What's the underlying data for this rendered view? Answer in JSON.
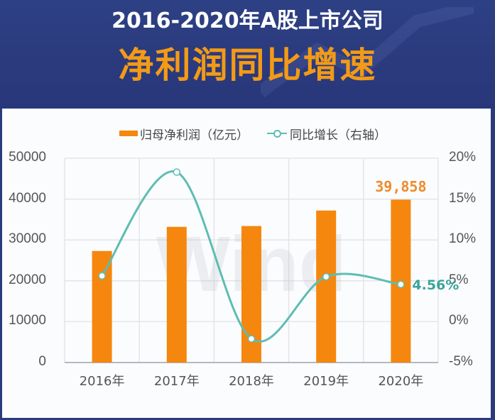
{
  "header": {
    "title_line1": "2016-2020年A股上市公司",
    "title_line2": "净利润同比增速"
  },
  "legend": {
    "bar_label": "归母净利润（亿元）",
    "line_label": "同比增长（右轴）"
  },
  "axes": {
    "left_ticks": [
      "50000",
      "40000",
      "30000",
      "20000",
      "10000",
      "0"
    ],
    "right_ticks": [
      "20%",
      "15%",
      "10%",
      "5%",
      "0%",
      "-5%"
    ],
    "x_ticks": [
      "2016年",
      "2017年",
      "2018年",
      "2019年",
      "2020年"
    ]
  },
  "annotations": {
    "last_bar_value": "39,858",
    "last_growth_value": "4.56%"
  },
  "watermark": "Wind",
  "colors": {
    "bar": "#f5870f",
    "line": "#5dbdb2",
    "title_accent": "#f39a17",
    "header_bg": "#2b3c7e"
  },
  "chart_data": {
    "type": "bar",
    "title": "2016-2020年A股上市公司 净利润同比增速",
    "categories": [
      "2016年",
      "2017年",
      "2018年",
      "2019年",
      "2020年"
    ],
    "series": [
      {
        "name": "归母净利润（亿元）",
        "type": "bar",
        "axis": "left",
        "values": [
          27300,
          33200,
          33400,
          37200,
          39858
        ]
      },
      {
        "name": "同比增长（右轴）",
        "type": "line",
        "axis": "right",
        "smooth": true,
        "values": [
          5.6,
          18.3,
          -2.1,
          5.5,
          4.56
        ],
        "unit": "%"
      }
    ],
    "xlabel": "",
    "ylabel": "",
    "ylim": [
      0,
      50000
    ],
    "y2lim": [
      -5,
      20
    ],
    "grid": true,
    "legend_position": "top",
    "data_labels": {
      "2020年_bar": "39,858",
      "2020年_line": "4.56%"
    }
  }
}
